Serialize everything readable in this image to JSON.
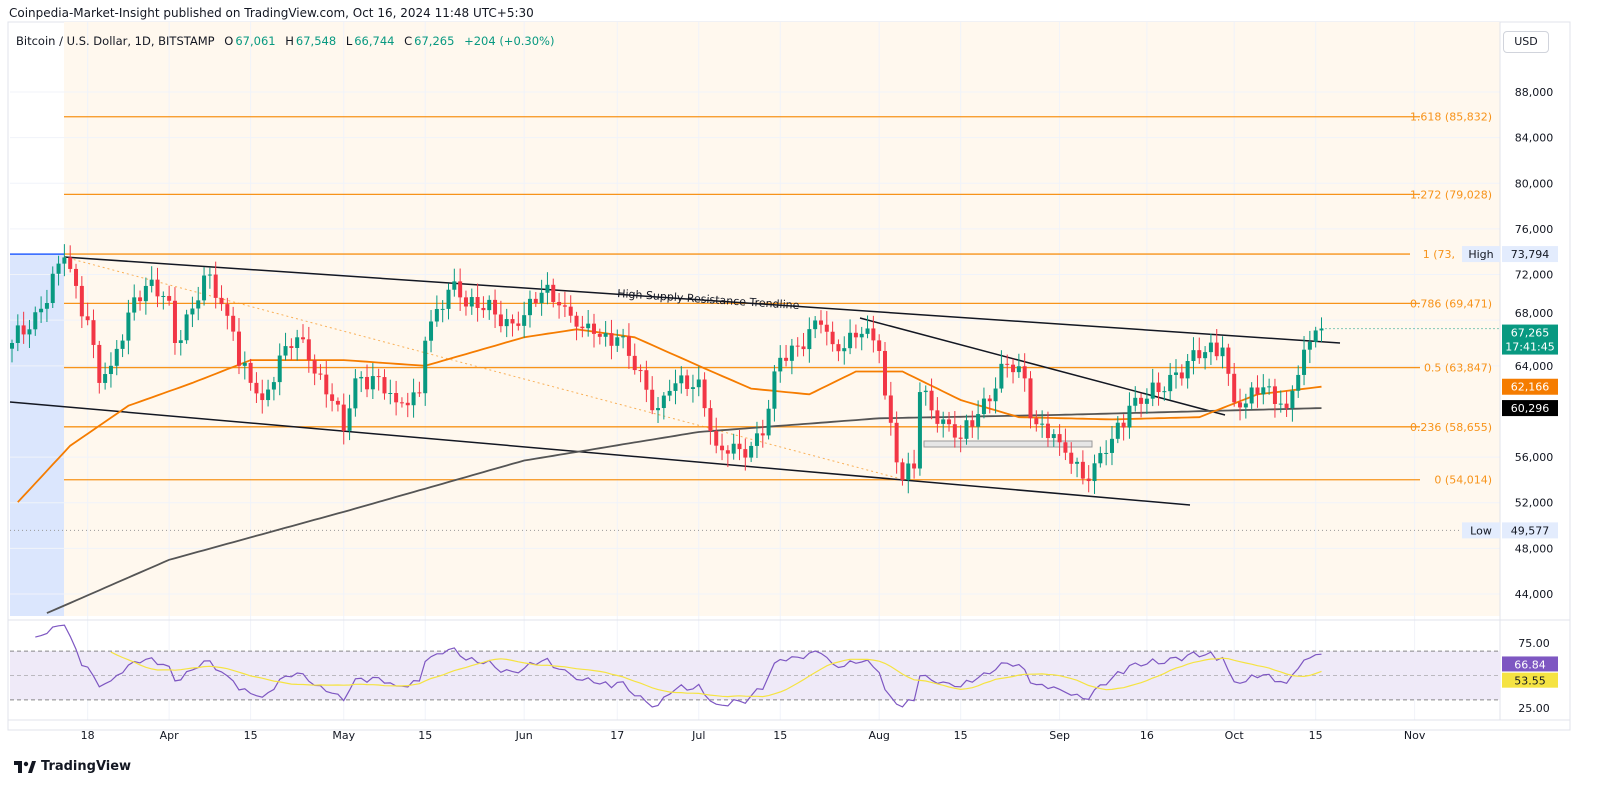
{
  "header": {
    "publisher": "Coinpedia-Market-Insight published on TradingView.com, Oct 16, 2024 11:48 UTC+5:30"
  },
  "legend": {
    "symbol": "Bitcoin / U.S. Dollar, 1D, BITSTAMP",
    "o_label": "O",
    "o": "67,061",
    "h_label": "H",
    "h": "67,548",
    "l_label": "L",
    "l": "66,744",
    "c_label": "C",
    "c": "67,265",
    "change": "+204 (+0.30%)"
  },
  "currency": "USD",
  "brand": "TradingView",
  "colors": {
    "up": "#089981",
    "down": "#f23645",
    "fib": "#f7931a",
    "ma50": "#f57c00",
    "ma200": "#555555",
    "rsi": "#7e57c2",
    "rsi_ma": "#f5e342"
  },
  "chart_data": {
    "type": "candlestick",
    "title": "Bitcoin / U.S. Dollar, 1D, BITSTAMP",
    "ylim": [
      42000,
      91000
    ],
    "price_ticks": [
      "88,000",
      "84,000",
      "80,000",
      "76,000",
      "72,000",
      "68,000",
      "64,000",
      "56,000",
      "52,000",
      "48,000",
      "44,000"
    ],
    "price_tick_values": [
      88000,
      84000,
      80000,
      76000,
      72000,
      68000,
      64000,
      56000,
      52000,
      48000,
      44000
    ],
    "x_ticks": [
      {
        "label": "18",
        "date": "2024-03-18"
      },
      {
        "label": "Apr",
        "date": "2024-04-01"
      },
      {
        "label": "15",
        "date": "2024-04-15"
      },
      {
        "label": "May",
        "date": "2024-05-01"
      },
      {
        "label": "15",
        "date": "2024-05-15"
      },
      {
        "label": "Jun",
        "date": "2024-06-01"
      },
      {
        "label": "17",
        "date": "2024-06-17"
      },
      {
        "label": "Jul",
        "date": "2024-07-01"
      },
      {
        "label": "15",
        "date": "2024-07-15"
      },
      {
        "label": "Aug",
        "date": "2024-08-01"
      },
      {
        "label": "15",
        "date": "2024-08-15"
      },
      {
        "label": "Sep",
        "date": "2024-09-01"
      },
      {
        "label": "16",
        "date": "2024-09-16"
      },
      {
        "label": "Oct",
        "date": "2024-10-01"
      },
      {
        "label": "15",
        "date": "2024-10-15"
      },
      {
        "label": "Nov",
        "date": "2024-11-01"
      }
    ],
    "close_keypoints": [
      [
        "2024-03-05",
        66000
      ],
      [
        "2024-03-10",
        69000
      ],
      [
        "2024-03-14",
        73500
      ],
      [
        "2024-03-18",
        68000
      ],
      [
        "2024-03-20",
        62500
      ],
      [
        "2024-03-22",
        64000
      ],
      [
        "2024-03-26",
        70000
      ],
      [
        "2024-03-28",
        71000
      ],
      [
        "2024-04-01",
        69700
      ],
      [
        "2024-04-02",
        66000
      ],
      [
        "2024-04-08",
        72000
      ],
      [
        "2024-04-12",
        67000
      ],
      [
        "2024-04-13",
        64000
      ],
      [
        "2024-04-17",
        61000
      ],
      [
        "2024-04-20",
        64900
      ],
      [
        "2024-04-23",
        66500
      ],
      [
        "2024-04-25",
        64500
      ],
      [
        "2024-04-30",
        60600
      ],
      [
        "2024-05-01",
        58300
      ],
      [
        "2024-05-03",
        62900
      ],
      [
        "2024-05-06",
        63100
      ],
      [
        "2024-05-10",
        60800
      ],
      [
        "2024-05-14",
        61600
      ],
      [
        "2024-05-15",
        66200
      ],
      [
        "2024-05-20",
        71400
      ],
      [
        "2024-05-21",
        70000
      ],
      [
        "2024-05-27",
        68500
      ],
      [
        "2024-05-31",
        67500
      ],
      [
        "2024-06-05",
        71100
      ],
      [
        "2024-06-07",
        69300
      ],
      [
        "2024-06-11",
        67300
      ],
      [
        "2024-06-13",
        66800
      ],
      [
        "2024-06-17",
        66500
      ],
      [
        "2024-06-24",
        60300
      ],
      [
        "2024-06-26",
        61800
      ],
      [
        "2024-07-01",
        62800
      ],
      [
        "2024-07-04",
        57000
      ],
      [
        "2024-07-05",
        56600
      ],
      [
        "2024-07-08",
        56700
      ],
      [
        "2024-07-12",
        57900
      ],
      [
        "2024-07-15",
        64700
      ],
      [
        "2024-07-22",
        67600
      ],
      [
        "2024-07-24",
        65900
      ],
      [
        "2024-07-29",
        66800
      ],
      [
        "2024-08-01",
        65300
      ],
      [
        "2024-08-02",
        61400
      ],
      [
        "2024-08-05",
        54000
      ],
      [
        "2024-08-07",
        55000
      ],
      [
        "2024-08-08",
        61700
      ],
      [
        "2024-08-12",
        59300
      ],
      [
        "2024-08-15",
        57600
      ],
      [
        "2024-08-23",
        64100
      ],
      [
        "2024-08-26",
        62900
      ],
      [
        "2024-08-27",
        59400
      ],
      [
        "2024-09-01",
        57300
      ],
      [
        "2024-09-06",
        53900
      ],
      [
        "2024-09-10",
        57600
      ],
      [
        "2024-09-13",
        60500
      ],
      [
        "2024-09-18",
        61700
      ],
      [
        "2024-09-20",
        63200
      ],
      [
        "2024-09-26",
        65200
      ],
      [
        "2024-09-29",
        65600
      ],
      [
        "2024-09-30",
        63300
      ],
      [
        "2024-10-01",
        60800
      ],
      [
        "2024-10-03",
        60700
      ],
      [
        "2024-10-04",
        62100
      ],
      [
        "2024-10-07",
        62200
      ],
      [
        "2024-10-10",
        60300
      ],
      [
        "2024-10-12",
        63200
      ],
      [
        "2024-10-14",
        66100
      ],
      [
        "2024-10-15",
        67100
      ],
      [
        "2024-10-16",
        67265
      ]
    ],
    "ma50_keypoints": [
      [
        "2024-03-05",
        51500
      ],
      [
        "2024-03-15",
        57000
      ],
      [
        "2024-03-25",
        60500
      ],
      [
        "2024-04-05",
        62500
      ],
      [
        "2024-04-15",
        64500
      ],
      [
        "2024-05-01",
        64500
      ],
      [
        "2024-05-15",
        64000
      ],
      [
        "2024-06-01",
        66500
      ],
      [
        "2024-06-10",
        67200
      ],
      [
        "2024-06-20",
        66500
      ],
      [
        "2024-07-01",
        64000
      ],
      [
        "2024-07-10",
        62000
      ],
      [
        "2024-07-20",
        61500
      ],
      [
        "2024-07-28",
        63500
      ],
      [
        "2024-08-05",
        63500
      ],
      [
        "2024-08-15",
        61000
      ],
      [
        "2024-08-25",
        59500
      ],
      [
        "2024-09-10",
        59300
      ],
      [
        "2024-09-25",
        59500
      ],
      [
        "2024-10-05",
        61500
      ],
      [
        "2024-10-16",
        62166
      ]
    ],
    "ma200_keypoints": [
      [
        "2024-03-10",
        42100
      ],
      [
        "2024-04-01",
        47000
      ],
      [
        "2024-05-01",
        51200
      ],
      [
        "2024-06-01",
        55700
      ],
      [
        "2024-07-01",
        58200
      ],
      [
        "2024-08-01",
        59400
      ],
      [
        "2024-09-01",
        59700
      ],
      [
        "2024-10-16",
        60296
      ]
    ],
    "fib_levels": [
      {
        "ratio": "1.618",
        "price": 85832,
        "label": "1.618 (85,832)"
      },
      {
        "ratio": "1.272",
        "price": 79028,
        "label": "1.272 (79,028)"
      },
      {
        "ratio": "1",
        "price": 73794,
        "label": "1 (73,"
      },
      {
        "ratio": "0.786",
        "price": 69471,
        "label": "0.786 (69,471)"
      },
      {
        "ratio": "0.5",
        "price": 63847,
        "label": "0.5 (63,847)"
      },
      {
        "ratio": "0.236",
        "price": 58655,
        "label": "0.236 (58,655)"
      },
      {
        "ratio": "0",
        "price": 54014,
        "label": "0 (54,014)"
      }
    ],
    "annotation": "High Supply Resistance Trendline",
    "high": {
      "label": "High",
      "value": "73,794",
      "price": 73794
    },
    "low": {
      "label": "Low",
      "value": "49,577",
      "price": 49577
    },
    "last_price": {
      "value": "67,265",
      "countdown": "17:41:45",
      "price": 67265
    },
    "ma50_tag": "62,166",
    "ma200_tag": "60,296",
    "rsi": {
      "ticks": [
        "75.00",
        "25.00"
      ],
      "value": "66.84",
      "ma_value": "53.55",
      "upper": 70,
      "lower": 30
    }
  }
}
